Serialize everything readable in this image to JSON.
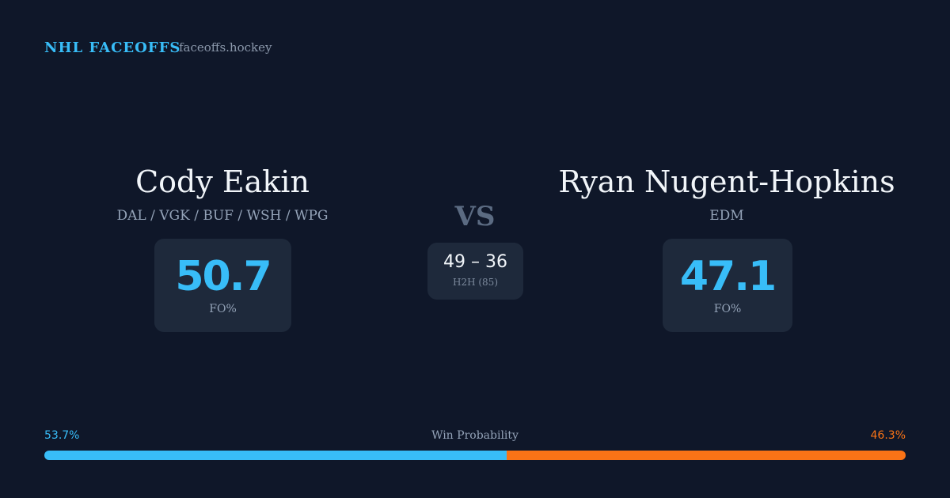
{
  "header": {
    "title": "NHL FACEOFFS",
    "site": "faceoffs.hockey"
  },
  "players": [
    {
      "name": "Cody Eakin",
      "teams": "DAL / VGK / BUF / WSH / WPG",
      "fo_pct": 50.7,
      "fo_label": "FO%"
    },
    {
      "name": "Ryan Nugent-Hopkins",
      "teams": "EDM",
      "fo_pct": 47.1,
      "fo_label": "FO%"
    }
  ],
  "vs": "VS",
  "h2h": {
    "score": "49 – 36",
    "label": "H2H (85)"
  },
  "win_probability": {
    "label": "Win Probability",
    "left": {
      "value": 53.7,
      "label": "53.7%",
      "color": "#38bdf8"
    },
    "right": {
      "value": 46.3,
      "label": "46.3%",
      "color": "#f97316"
    }
  }
}
